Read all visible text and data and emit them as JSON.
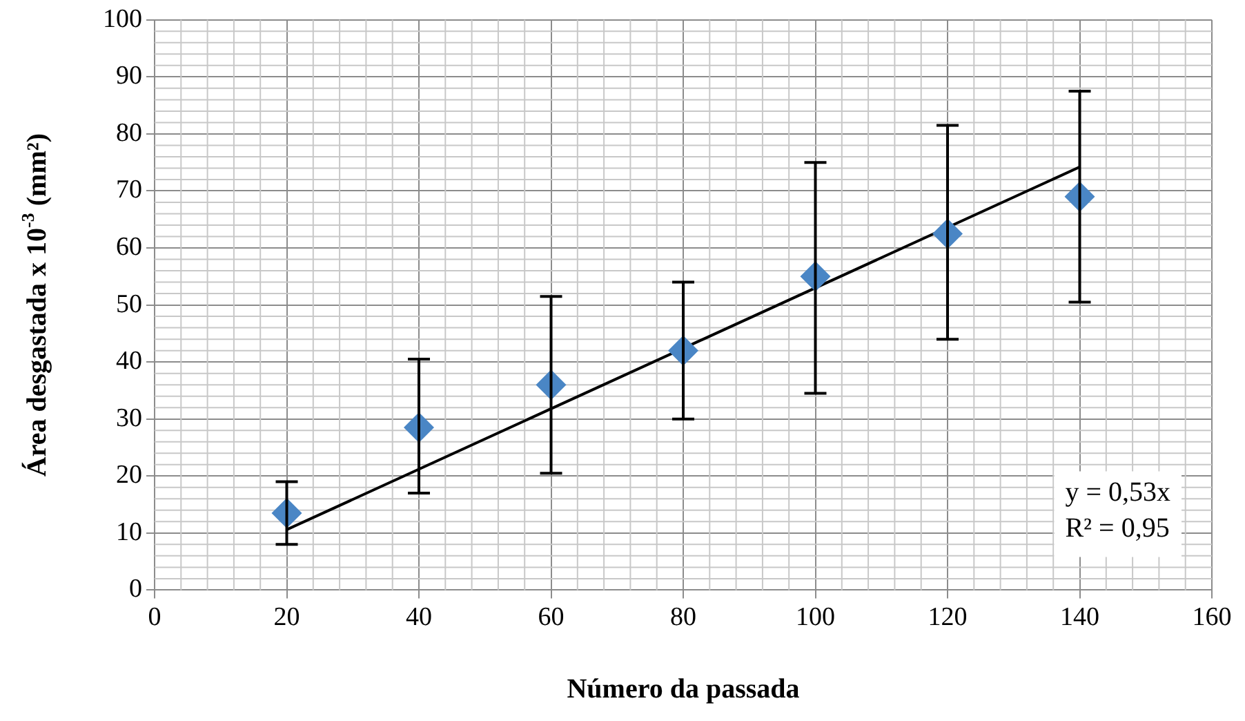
{
  "chart_data": {
    "type": "scatter",
    "xlabel": "Número da passada",
    "ylabel": "Área desgastada x 10$^{-3}$ (mm²)",
    "x": [
      20,
      40,
      60,
      80,
      100,
      120,
      140
    ],
    "series": [
      {
        "color": "#4a86c5",
        "marker": "diamond",
        "values": [
          13.5,
          28.5,
          36,
          42,
          55,
          62.5,
          69
        ],
        "errors": [
          [
            8,
            19
          ],
          [
            17,
            40.5
          ],
          [
            20.5,
            51.5
          ],
          [
            30,
            54
          ],
          [
            34.5,
            75
          ],
          [
            44,
            81.5
          ],
          [
            50.5,
            87.5
          ]
        ]
      },
      {
        "type": "line",
        "color": "#000000",
        "marker": "none",
        "x": [
          20,
          140
        ],
        "values": [
          10.6,
          74.2
        ]
      }
    ],
    "xlim": [
      0,
      160
    ],
    "xticks": [
      0,
      20,
      40,
      60,
      80,
      100,
      120,
      140,
      160
    ],
    "ylim": [
      0,
      100
    ],
    "yticks": [
      0,
      10,
      20,
      30,
      40,
      50,
      60,
      70,
      80,
      90,
      100
    ],
    "grid": true,
    "legend": false,
    "annotations": [
      "y = 0,53x",
      "R² = 0,95"
    ]
  }
}
